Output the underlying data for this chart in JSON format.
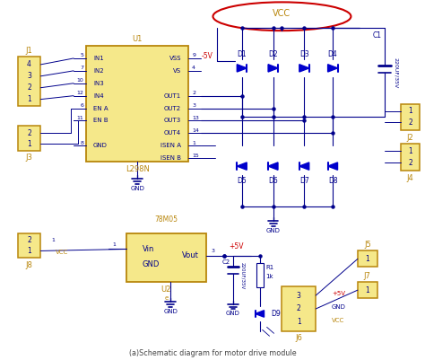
{
  "title": "(a)Schematic diagram for motor drive module",
  "bg_color": "#ffffff",
  "diode_color": "#0000cc",
  "wire_color": "#00008b",
  "box_color": "#b8860b",
  "box_fill": "#f5e88a",
  "text_color": "#00008b",
  "label_color": "#b8860b",
  "red_color": "#cc0000",
  "vcc_label": "VCC",
  "gnd_label": "GND",
  "neg5v_label": "-5V",
  "pos5v_label": "+5V",
  "u1_label": "U1",
  "u1_chip": "L298N",
  "u2_label": "U2",
  "u2_chip": "78M05",
  "diodes_top": [
    "D1",
    "D2",
    "D3",
    "D4"
  ],
  "diodes_bot": [
    "D5",
    "D6",
    "D7",
    "D8"
  ],
  "diode_d9": "D9",
  "cap_c1_label": "C1",
  "cap_c1_spec": "220UF/35V",
  "cap_c2_label": "C2",
  "cap_c2_spec": "220UF/35V",
  "res_r1": "R1",
  "res_r1_val": "1k"
}
